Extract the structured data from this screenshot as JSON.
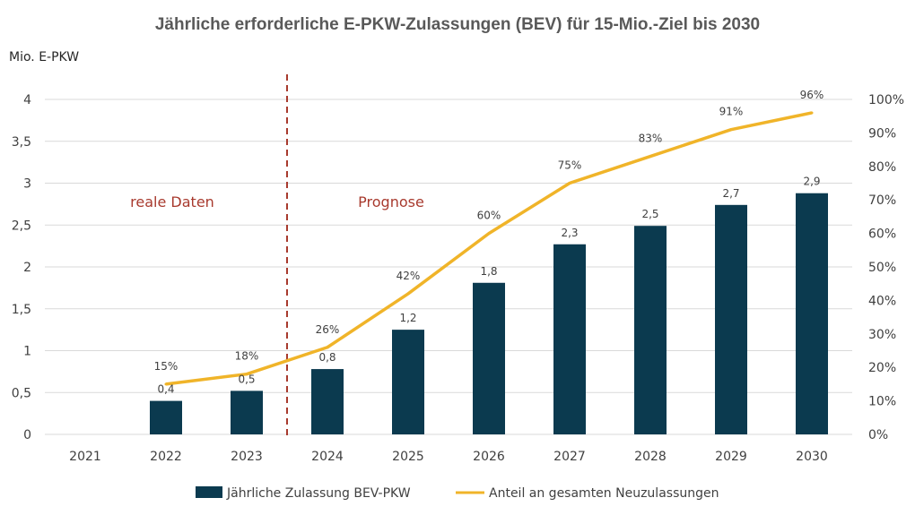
{
  "chart_data": {
    "type": "bar+line",
    "title": "Jährliche erforderliche E-PKW-Zulassungen (BEV) für 15-Mio.-Ziel bis 2030",
    "ylabel": "Mio. E-PKW",
    "categories": [
      "2021",
      "2022",
      "2023",
      "2024",
      "2025",
      "2026",
      "2027",
      "2028",
      "2029",
      "2030"
    ],
    "ylim": [
      0,
      4
    ],
    "y_ticks": [
      "0",
      "0,5",
      "1",
      "1,5",
      "2",
      "2,5",
      "3",
      "3,5",
      "4"
    ],
    "y2lim": [
      0,
      1
    ],
    "y2_ticks": [
      "0%",
      "10%",
      "20%",
      "30%",
      "40%",
      "50%",
      "60%",
      "70%",
      "80%",
      "90%",
      "100%"
    ],
    "grid": true,
    "series": [
      {
        "name": "Jährliche Zulassung BEV-PKW",
        "type": "bar",
        "axis": "left",
        "color": "#0b3a4f",
        "values": [
          null,
          0.4,
          0.52,
          0.78,
          1.25,
          1.81,
          2.27,
          2.49,
          2.74,
          2.88
        ],
        "labels": [
          "",
          "0,4",
          "0,5",
          "0,8",
          "1,2",
          "1,8",
          "2,3",
          "2,5",
          "2,7",
          "2,9"
        ]
      },
      {
        "name": "Anteil an gesamten Neuzulassungen",
        "type": "line",
        "axis": "right",
        "color": "#f0b429",
        "values": [
          null,
          0.15,
          0.18,
          0.26,
          0.42,
          0.6,
          0.75,
          0.83,
          0.91,
          0.96
        ],
        "labels": [
          "",
          "15%",
          "18%",
          "26%",
          "42%",
          "60%",
          "75%",
          "83%",
          "91%",
          "96%"
        ]
      }
    ],
    "divider": {
      "between": [
        "2023",
        "2024"
      ],
      "color": "#a83a2e"
    },
    "annotations": [
      {
        "text": "reale Daten",
        "color": "#a83a2e"
      },
      {
        "text": "Prognose",
        "color": "#a83a2e"
      }
    ],
    "legend_position": "bottom"
  }
}
